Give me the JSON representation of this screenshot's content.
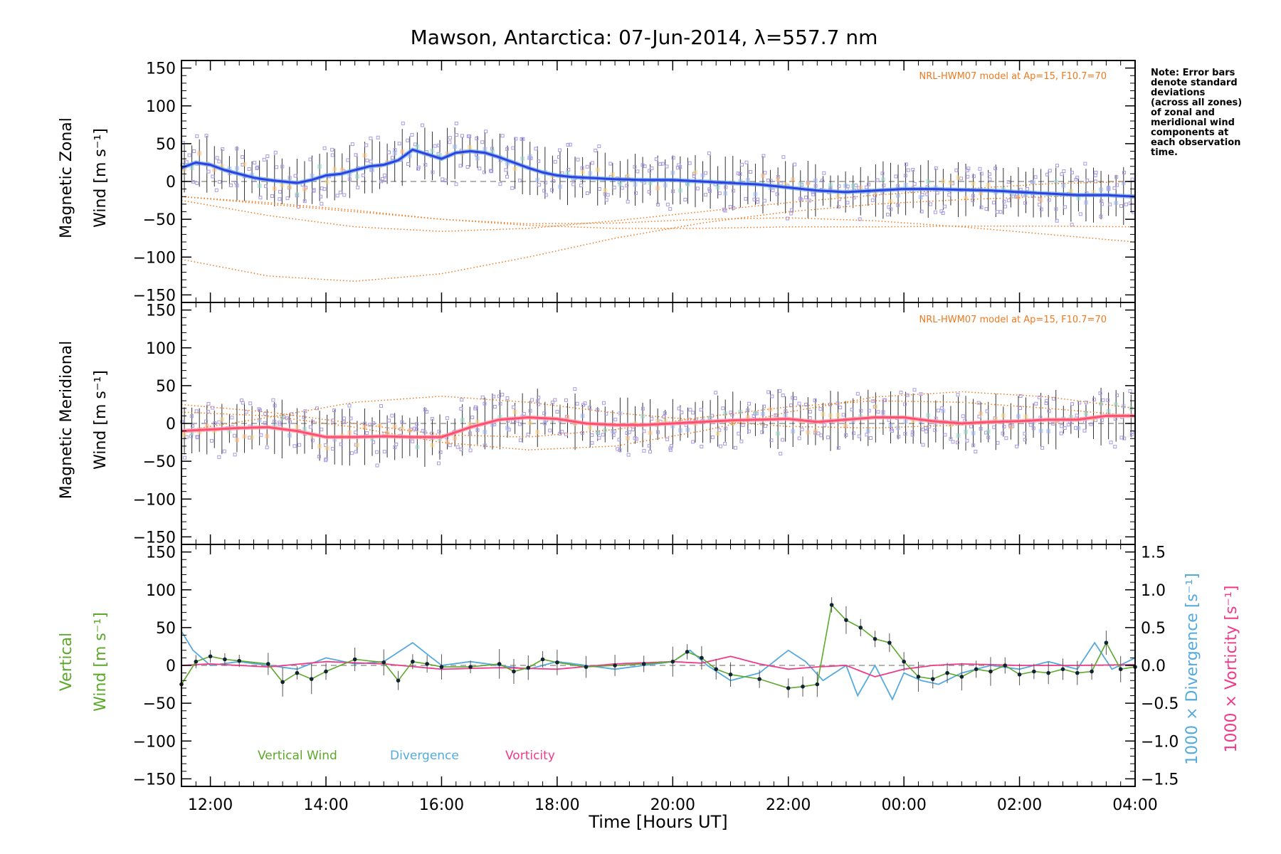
{
  "figure": {
    "title": "Mawson, Antarctica: 07-Jun-2014, λ=557.7 nm",
    "x_axis_label": "Time [Hours UT]",
    "x_tick_labels": [
      "12:00",
      "14:00",
      "16:00",
      "18:00",
      "20:00",
      "22:00",
      "00:00",
      "02:00",
      "04:00"
    ],
    "y_tick_labels": [
      "150",
      "100",
      "50",
      "0",
      "−50",
      "−100",
      "−150"
    ],
    "right_tick_labels": [
      "1.5",
      "1.0",
      "0.5",
      "0.0",
      "−0.5",
      "−1.0",
      "−1.5"
    ],
    "note_lines": [
      "Note: Error bars",
      "denote standard",
      "deviations",
      "(across all zones)",
      "of zonal and",
      "meridional wind",
      "components at",
      "each observation",
      "time."
    ],
    "model_label": "NRL-HWM07 model at Ap=15, F10.7=70"
  },
  "panels": {
    "zonal": {
      "ylabel_line1": "Magnetic Zonal",
      "ylabel_line2": "Wind [m s⁻¹]"
    },
    "meridional": {
      "ylabel_line1": "Magnetic Meridional",
      "ylabel_line2": "Wind [m s⁻¹]"
    },
    "vertical": {
      "ylabel_line1": "Vertical",
      "ylabel_line2": "Wind [m s⁻¹]",
      "right_label_divergence": "1000 × Divergence [s⁻¹]",
      "right_label_vorticity": "1000 × Vorticity [s⁻¹]",
      "legend": [
        "Vertical Wind",
        "Divergence",
        "Vorticity"
      ]
    }
  },
  "colors": {
    "zonal": "#2f3fe6",
    "zonal_light": "#63a9dd",
    "meridional": "#ff4f6e",
    "vertical": "#5ca82b",
    "divergence": "#55aadd",
    "vorticity": "#ef3a8a",
    "model": "#ee7a1f",
    "scatter": "#a99ae0"
  },
  "chart_data": [
    {
      "type": "line",
      "panel": "zonal",
      "xlabel": "",
      "ylabel": "Magnetic Zonal Wind [m s⁻¹]",
      "x_units": "hours UT (values > 24 = next day)",
      "xlim": [
        11.5,
        28.0
      ],
      "ylim": [
        -160,
        160
      ],
      "series": [
        {
          "x": [
            11.5,
            11.75,
            12.0,
            12.25,
            12.5,
            12.75,
            13.0,
            13.25,
            13.5,
            13.75,
            14.0,
            14.25,
            14.5,
            14.75,
            15.0,
            15.25,
            15.5,
            15.75,
            16.0,
            16.25,
            16.5,
            16.75,
            17.0,
            17.25,
            17.5,
            17.75,
            18.0,
            18.25,
            18.5,
            18.75,
            19.0,
            19.5,
            20.0,
            20.5,
            21.0,
            21.5,
            22.0,
            22.5,
            23.0,
            23.5,
            24.0,
            24.5,
            25.0,
            25.5,
            26.0,
            26.5,
            27.0,
            27.5,
            28.0
          ],
          "y": [
            18,
            25,
            22,
            15,
            10,
            5,
            2,
            0,
            -2,
            2,
            8,
            10,
            15,
            20,
            22,
            28,
            42,
            36,
            30,
            38,
            40,
            38,
            32,
            25,
            18,
            12,
            8,
            6,
            5,
            4,
            3,
            2,
            2,
            0,
            -2,
            -4,
            -8,
            -12,
            -14,
            -12,
            -10,
            -10,
            -11,
            -12,
            -14,
            -16,
            -18,
            -18,
            -20
          ]
        },
        {
          "x": [
            11.5,
            13.0,
            14.5,
            16.0,
            17.5,
            19.0,
            20.5,
            22.0,
            23.5,
            25.0,
            26.5,
            28.0
          ],
          "y": [
            -20,
            -30,
            -40,
            -50,
            -58,
            -62,
            -62,
            -60,
            -60,
            -59,
            -59,
            -60
          ]
        },
        {
          "x": [
            11.5,
            13.0,
            14.5,
            16.0,
            17.5,
            19.0,
            20.5,
            22.0,
            23.5,
            25.0,
            26.5,
            28.0
          ],
          "y": [
            -25,
            -45,
            -60,
            -66,
            -62,
            -52,
            -40,
            -28,
            -18,
            -10,
            -3,
            0
          ]
        },
        {
          "x": [
            11.5,
            13.0,
            14.5,
            16.0,
            17.5,
            19.0,
            20.5,
            22.0,
            23.5,
            25.0,
            26.5,
            28.0
          ],
          "y": [
            -103,
            -125,
            -132,
            -122,
            -100,
            -75,
            -55,
            -40,
            -30,
            -24,
            -20,
            -18
          ]
        },
        {
          "x": [
            11.5,
            13.0,
            14.5,
            16.0,
            17.5,
            19.0,
            20.5,
            22.0,
            23.5,
            25.0,
            26.5,
            28.0
          ],
          "y": [
            -20,
            -28,
            -38,
            -50,
            -56,
            -55,
            -50,
            -48,
            -52,
            -60,
            -70,
            -80
          ]
        }
      ]
    },
    {
      "type": "line",
      "panel": "meridional",
      "xlabel": "",
      "ylabel": "Magnetic Meridional Wind [m s⁻¹]",
      "xlim": [
        11.5,
        28.0
      ],
      "ylim": [
        -160,
        160
      ],
      "series": [
        {
          "x": [
            11.5,
            12.0,
            12.5,
            13.0,
            13.5,
            14.0,
            14.5,
            15.0,
            15.5,
            16.0,
            16.5,
            17.0,
            17.5,
            18.0,
            18.5,
            19.0,
            19.5,
            20.0,
            20.5,
            21.0,
            21.5,
            22.0,
            22.5,
            23.0,
            23.5,
            24.0,
            24.5,
            25.0,
            25.5,
            26.0,
            26.5,
            27.0,
            27.5,
            28.0
          ],
          "y": [
            -10,
            -8,
            -6,
            -5,
            -10,
            -18,
            -18,
            -17,
            -18,
            -18,
            -5,
            5,
            8,
            6,
            0,
            -2,
            -2,
            0,
            2,
            4,
            5,
            6,
            2,
            5,
            8,
            8,
            3,
            0,
            2,
            3,
            5,
            5,
            10,
            10
          ]
        },
        {
          "x": [
            11.5,
            13.0,
            14.5,
            16.0,
            17.5,
            19.0,
            20.5,
            22.0,
            23.5,
            25.0,
            26.5,
            28.0
          ],
          "y": [
            -10,
            8,
            28,
            36,
            28,
            14,
            4,
            -4,
            -6,
            -2,
            5,
            12
          ]
        },
        {
          "x": [
            11.5,
            13.0,
            14.5,
            16.0,
            17.5,
            19.0,
            20.5,
            22.0,
            23.5,
            25.0,
            26.5,
            28.0
          ],
          "y": [
            15,
            10,
            -5,
            -25,
            -35,
            -30,
            -10,
            15,
            35,
            42,
            35,
            20
          ]
        },
        {
          "x": [
            11.5,
            13.0,
            14.5,
            16.0,
            17.5,
            19.0,
            20.5,
            22.0,
            23.5,
            25.0,
            26.5,
            28.0
          ],
          "y": [
            25,
            15,
            0,
            -15,
            -18,
            -8,
            8,
            22,
            30,
            28,
            20,
            10
          ]
        }
      ]
    },
    {
      "type": "line",
      "panel": "vertical",
      "xlabel": "Time [Hours UT]",
      "ylabel": "Vertical Wind [m s⁻¹]",
      "xlim": [
        11.5,
        28.0
      ],
      "ylim": [
        -160,
        160
      ],
      "y2lim": [
        -1.6,
        1.6
      ],
      "series": [
        {
          "name": "Vertical Wind",
          "axis": "left",
          "x": [
            11.5,
            11.75,
            12.0,
            12.25,
            12.5,
            13.0,
            13.25,
            13.5,
            13.75,
            14.0,
            14.5,
            15.0,
            15.25,
            15.5,
            15.75,
            16.0,
            16.5,
            17.0,
            17.25,
            17.5,
            17.75,
            18.0,
            18.5,
            19.0,
            19.5,
            20.0,
            20.25,
            20.5,
            20.75,
            21.0,
            21.5,
            22.0,
            22.25,
            22.5,
            22.75,
            23.0,
            23.25,
            23.5,
            23.75,
            24.0,
            24.25,
            24.5,
            24.75,
            25.0,
            25.25,
            25.5,
            25.75,
            26.0,
            26.25,
            26.5,
            26.75,
            27.0,
            27.25,
            27.5,
            27.75,
            28.0
          ],
          "y": [
            -25,
            5,
            12,
            8,
            6,
            2,
            -22,
            -10,
            -18,
            -8,
            8,
            4,
            -20,
            5,
            2,
            -2,
            -2,
            2,
            -8,
            -3,
            8,
            4,
            -2,
            0,
            2,
            5,
            18,
            10,
            -5,
            -12,
            -18,
            -30,
            -28,
            -25,
            80,
            60,
            50,
            35,
            30,
            5,
            -15,
            -18,
            -10,
            -15,
            -5,
            -8,
            0,
            -12,
            -8,
            -10,
            -5,
            -10,
            -8,
            30,
            -5,
            -2
          ]
        },
        {
          "name": "Divergence",
          "axis": "right",
          "x": [
            11.5,
            11.7,
            12.0,
            12.5,
            13.0,
            13.5,
            14.0,
            14.5,
            15.0,
            15.5,
            16.0,
            16.5,
            17.0,
            17.5,
            18.0,
            18.5,
            19.0,
            19.5,
            20.0,
            20.3,
            20.6,
            21.0,
            21.5,
            22.0,
            22.3,
            22.6,
            23.0,
            23.2,
            23.5,
            23.8,
            24.0,
            24.3,
            24.6,
            25.0,
            25.5,
            26.0,
            26.5,
            27.0,
            27.3,
            27.6,
            28.0
          ],
          "y": [
            0.45,
            0.2,
            0.0,
            0.05,
            0.0,
            -0.05,
            0.1,
            0.02,
            0.05,
            0.3,
            0.0,
            0.05,
            0.0,
            -0.05,
            0.05,
            0.0,
            -0.05,
            0.0,
            0.05,
            0.2,
            0.0,
            -0.2,
            -0.1,
            0.2,
            0.05,
            -0.2,
            0.0,
            -0.4,
            0.0,
            -0.45,
            -0.1,
            -0.2,
            -0.25,
            -0.1,
            0.0,
            -0.05,
            0.05,
            -0.05,
            0.3,
            -0.05,
            0.1
          ]
        },
        {
          "name": "Vorticity",
          "axis": "right",
          "x": [
            11.5,
            12.0,
            13.0,
            14.0,
            15.0,
            16.0,
            17.0,
            18.0,
            19.0,
            20.0,
            20.5,
            21.0,
            21.5,
            22.0,
            22.5,
            23.0,
            23.5,
            24.0,
            24.5,
            25.0,
            26.0,
            27.0,
            28.0
          ],
          "y": [
            0.0,
            0.02,
            -0.02,
            0.05,
            0.02,
            -0.05,
            -0.03,
            -0.05,
            0.02,
            0.05,
            0.03,
            0.12,
            0.02,
            -0.05,
            -0.02,
            0.0,
            -0.15,
            -0.05,
            0.0,
            0.02,
            0.0,
            0.0,
            0.01
          ]
        }
      ]
    }
  ]
}
